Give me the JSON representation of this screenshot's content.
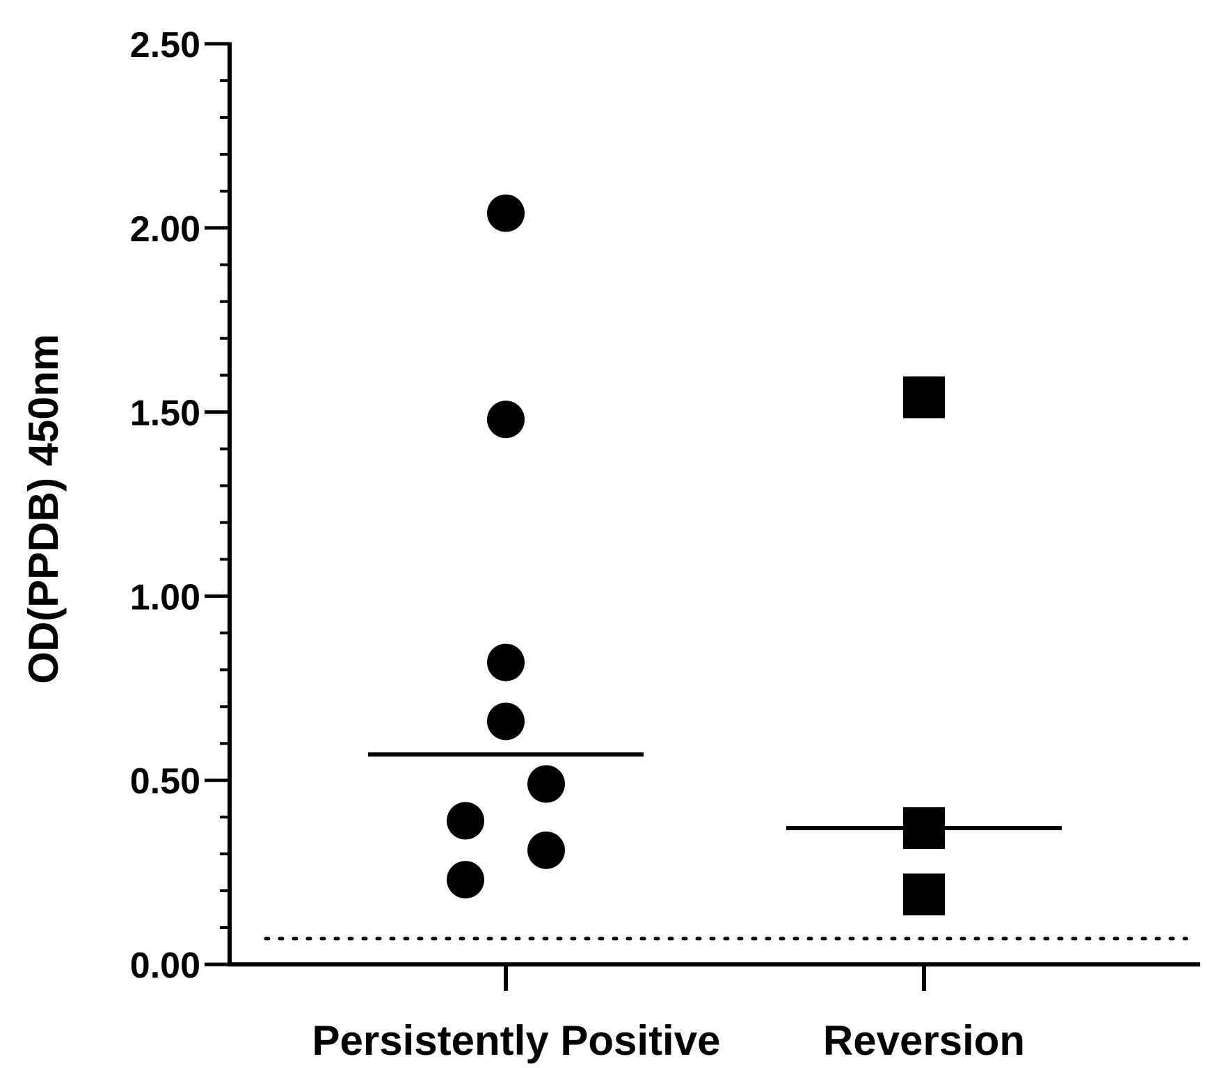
{
  "chart_data": {
    "type": "scatter",
    "title": "",
    "xlabel": "",
    "ylabel": "OD(PPDB) 450nm",
    "ylim": [
      0,
      2.5
    ],
    "yticks": [
      "0.00",
      "0.50",
      "1.00",
      "1.50",
      "2.00",
      "2.50"
    ],
    "y_minor_step": 0.1,
    "categories": [
      "Persistently Positive",
      "Reversion"
    ],
    "series": [
      {
        "name": "Persistently Positive",
        "marker": "circle",
        "points": [
          {
            "jitter": 0,
            "y": 2.04
          },
          {
            "jitter": 0,
            "y": 1.48
          },
          {
            "jitter": 0,
            "y": 0.82
          },
          {
            "jitter": 0,
            "y": 0.66
          },
          {
            "jitter": 1,
            "y": 0.49
          },
          {
            "jitter": -1,
            "y": 0.39
          },
          {
            "jitter": 1,
            "y": 0.31
          },
          {
            "jitter": -1,
            "y": 0.23
          }
        ],
        "mean": 0.57
      },
      {
        "name": "Reversion",
        "marker": "square",
        "points": [
          {
            "jitter": 0,
            "y": 1.54
          },
          {
            "jitter": 0,
            "y": 0.37
          },
          {
            "jitter": 0,
            "y": 0.19
          }
        ],
        "mean": 0.37
      }
    ],
    "threshold": 0.07,
    "grid": false,
    "colors": {
      "marker": "#000000",
      "axis": "#000000"
    }
  }
}
